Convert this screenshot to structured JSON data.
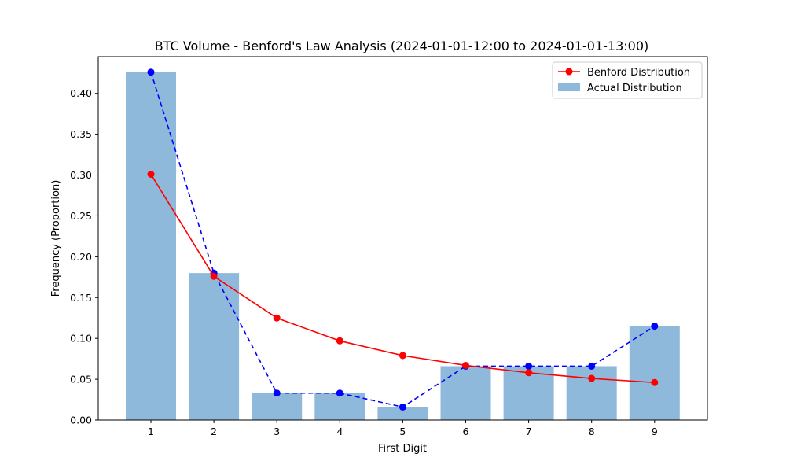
{
  "chart_data": {
    "type": "bar",
    "title": "BTC Volume - Benford's Law Analysis (2024-01-01-12:00 to 2024-01-01-13:00)",
    "xlabel": "First Digit",
    "ylabel": "Frequency (Proportion)",
    "categories": [
      "1",
      "2",
      "3",
      "4",
      "5",
      "6",
      "7",
      "8",
      "9"
    ],
    "ylim": [
      0,
      0.445
    ],
    "yticks": [
      "0.00",
      "0.05",
      "0.10",
      "0.15",
      "0.20",
      "0.25",
      "0.30",
      "0.35",
      "0.40"
    ],
    "series": [
      {
        "name": "Actual Distribution",
        "kind": "bar",
        "color": "#8fb9da",
        "values": [
          0.426,
          0.18,
          0.033,
          0.033,
          0.016,
          0.066,
          0.066,
          0.066,
          0.115
        ]
      },
      {
        "kind": "line-dashed",
        "color": "#0000ff",
        "values": [
          0.426,
          0.18,
          0.033,
          0.033,
          0.016,
          0.066,
          0.066,
          0.066,
          0.115
        ]
      },
      {
        "name": "Benford Distribution",
        "kind": "line",
        "color": "#ff0000",
        "values": [
          0.301,
          0.176,
          0.125,
          0.097,
          0.079,
          0.067,
          0.058,
          0.051,
          0.046
        ]
      }
    ],
    "legend": {
      "position": "top-right"
    },
    "grid": false
  }
}
